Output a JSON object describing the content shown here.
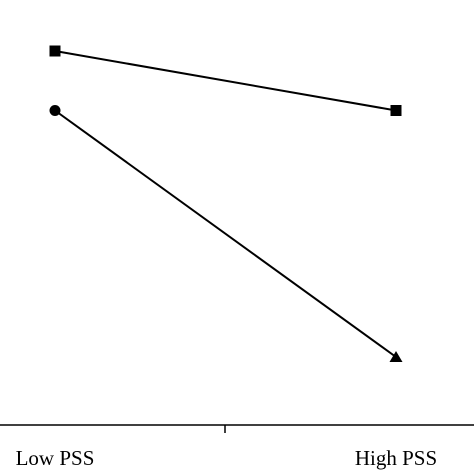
{
  "chart_data": {
    "type": "line",
    "categories": [
      "Low PSS",
      "High PSS"
    ],
    "series": [
      {
        "color": "#000000",
        "markers": [
          "square",
          "square"
        ],
        "values": [
          88,
          74
        ]
      },
      {
        "color": "#000000",
        "markers": [
          "circle",
          "triangle"
        ],
        "values": [
          74,
          16
        ]
      }
    ],
    "ylim": [
      0,
      100
    ]
  }
}
